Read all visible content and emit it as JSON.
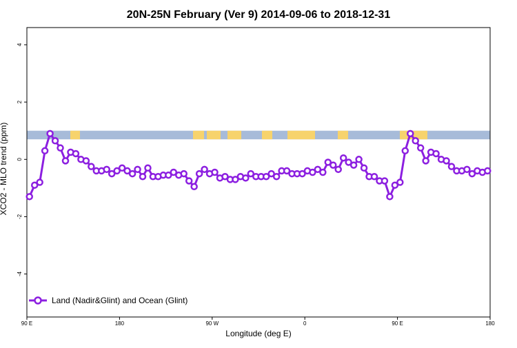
{
  "chart_data": {
    "type": "line",
    "title": "20N-25N February (Ver 9)   2014-09-06 to 2018-12-31",
    "xlabel": "Longitude (deg E)",
    "ylabel": "XCO2 - MLO trend (ppm)",
    "xlim": [
      90,
      540
    ],
    "ylim": [
      -5.5,
      4.6
    ],
    "y_ticks": [
      {
        "value": 4,
        "label": "4"
      },
      {
        "value": 2,
        "label": "2"
      },
      {
        "value": 0,
        "label": "0"
      },
      {
        "value": -2,
        "label": "-2"
      },
      {
        "value": -4,
        "label": "-4"
      }
    ],
    "x_ticks": [
      {
        "value": 90,
        "label": "90 E"
      },
      {
        "value": 180,
        "label": "180"
      },
      {
        "value": 270,
        "label": "90 W"
      },
      {
        "value": 360,
        "label": "0"
      },
      {
        "value": 450,
        "label": "90 E"
      },
      {
        "value": 540,
        "label": "180"
      }
    ],
    "land_ocean_band": {
      "y_range": [
        0.7,
        1.0
      ],
      "ocean_color": "#a7bbd9",
      "land_color": "#f7d36c"
    },
    "legend": {
      "position": "bottom-left"
    },
    "series": [
      {
        "name": "Land (Nadir&Glint) and Ocean (Glint)",
        "color": "#8c1fe0",
        "x": [
          92.5,
          97.5,
          102.5,
          107.5,
          112.5,
          117.5,
          122.5,
          127.5,
          132.5,
          137.5,
          142.5,
          147.5,
          152.5,
          157.5,
          162.5,
          167.5,
          172.5,
          177.5,
          182.5,
          187.5,
          192.5,
          197.5,
          202.5,
          207.5,
          212.5,
          217.5,
          222.5,
          227.5,
          232.5,
          237.5,
          242.5,
          247.5,
          252.5,
          257.5,
          262.5,
          267.5,
          272.5,
          277.5,
          282.5,
          287.5,
          292.5,
          297.5,
          302.5,
          307.5,
          312.5,
          317.5,
          322.5,
          327.5,
          332.5,
          337.5,
          342.5,
          347.5,
          352.5,
          357.5,
          362.5,
          367.5,
          372.5,
          377.5,
          382.5,
          387.5,
          392.5,
          397.5,
          402.5,
          407.5,
          412.5,
          417.5,
          422.5,
          427.5,
          432.5,
          437.5,
          442.5,
          447.5,
          452.5,
          457.5,
          462.5,
          467.5,
          472.5,
          477.5,
          482.5,
          487.5,
          492.5,
          497.5,
          502.5,
          507.5,
          512.5,
          517.5,
          522.5,
          527.5,
          532.5,
          537.5
        ],
        "y": [
          -1.3,
          -0.9,
          -0.8,
          0.3,
          0.9,
          0.65,
          0.4,
          -0.05,
          0.25,
          0.2,
          0.0,
          -0.05,
          -0.25,
          -0.4,
          -0.4,
          -0.35,
          -0.5,
          -0.4,
          -0.3,
          -0.4,
          -0.5,
          -0.35,
          -0.6,
          -0.3,
          -0.6,
          -0.6,
          -0.55,
          -0.55,
          -0.45,
          -0.55,
          -0.5,
          -0.75,
          -0.95,
          -0.5,
          -0.35,
          -0.5,
          -0.45,
          -0.65,
          -0.6,
          -0.7,
          -0.7,
          -0.6,
          -0.65,
          -0.5,
          -0.6,
          -0.6,
          -0.6,
          -0.5,
          -0.6,
          -0.4,
          -0.4,
          -0.5,
          -0.5,
          -0.5,
          -0.4,
          -0.45,
          -0.35,
          -0.45,
          -0.1,
          -0.2,
          -0.35,
          0.05,
          -0.1,
          -0.2,
          0.0,
          -0.3,
          -0.6,
          -0.6,
          -0.75,
          -0.75,
          -1.3,
          -0.9,
          -0.8,
          0.3,
          0.9,
          0.65,
          0.4,
          -0.05,
          0.25,
          0.2,
          0.0,
          -0.05,
          -0.25,
          -0.4,
          -0.4,
          -0.35,
          -0.5,
          -0.4,
          -0.45,
          -0.4
        ]
      }
    ]
  }
}
